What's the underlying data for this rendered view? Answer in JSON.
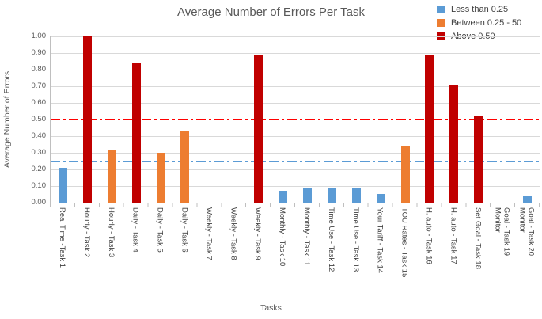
{
  "title": "Average Number of Errors Per Task",
  "legend": {
    "items": [
      {
        "label": "Less than 0.25",
        "color": "#5B9BD5"
      },
      {
        "label": "Between 0.25 - 50",
        "color": "#ED7D31"
      },
      {
        "label": "Above 0.50",
        "color": "#C00000"
      }
    ]
  },
  "colors": {
    "bar_blue": "#5B9BD5",
    "bar_orange": "#ED7D31",
    "bar_red": "#C00000",
    "ref_line_red": "#FF0000",
    "ref_line_blue": "#5B9BD5",
    "gridline": "#D9D9D9",
    "axis_line": "#BFBFBF",
    "title_text": "#595959",
    "label_text": "#404040"
  },
  "chart_data": {
    "type": "bar",
    "title": "Average Number of Errors Per Task",
    "xlabel": "Tasks",
    "ylabel": "Average Number of Errors",
    "ylim": [
      0,
      1.0
    ],
    "ytick_labels": [
      "1.00",
      "0.90",
      "0.80",
      "0.70",
      "0.60",
      "0.50",
      "0.40",
      "0.30",
      "0.20",
      "0.10",
      "0.00"
    ],
    "grid": true,
    "legend_position": "top-right",
    "categories": [
      "Real Time -Task 1",
      "Hourly - Task 2",
      "Hourly - Task 3",
      "Daily - Task 4",
      "Daily - Task 5",
      "Daily - Task 6",
      "Weekly - Task 7",
      "Weekly - Task 8",
      "Weekly - Task 9",
      "Monthly - Task 10",
      "Monthly - Task 11",
      "Time Use - Task 12",
      "Time Use - Task 13",
      "Your Tariff - Task 14",
      "TOU Rates -  Task 15",
      "H. auto -  Task 16",
      "H. auto -  Task 17",
      "Set Goal - Task 18",
      "Monitor\nGoal - Task 19",
      "Monitor\nGoal - Task 20"
    ],
    "values": [
      0.21,
      1.0,
      0.32,
      0.84,
      0.3,
      0.43,
      0,
      0,
      0.89,
      0.07,
      0.09,
      0.09,
      0.09,
      0.05,
      0.34,
      0.89,
      0.71,
      0.52,
      0,
      0.04
    ],
    "bar_colors": [
      "#5B9BD5",
      "#C00000",
      "#ED7D31",
      "#C00000",
      "#ED7D31",
      "#ED7D31",
      null,
      null,
      "#C00000",
      "#5B9BD5",
      "#5B9BD5",
      "#5B9BD5",
      "#5B9BD5",
      "#5B9BD5",
      "#ED7D31",
      "#C00000",
      "#C00000",
      "#C00000",
      null,
      "#5B9BD5"
    ],
    "reference_lines": [
      {
        "value": 0.5,
        "color": "#FF0000",
        "style": "dash-dot"
      },
      {
        "value": 0.25,
        "color": "#5B9BD5",
        "style": "dash-dot"
      }
    ]
  }
}
